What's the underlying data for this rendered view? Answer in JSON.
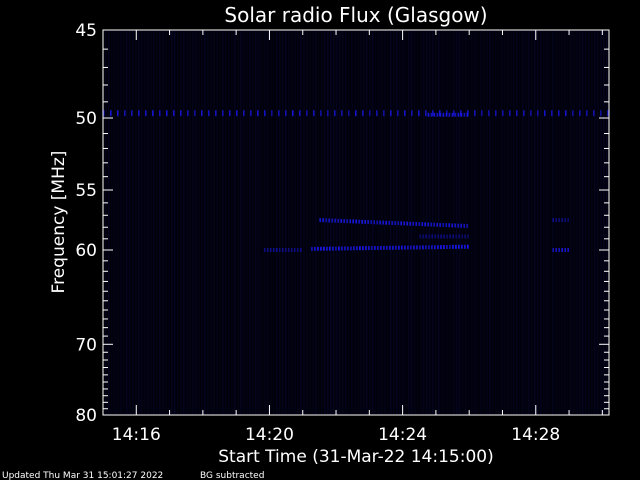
{
  "chart_data": {
    "type": "heatmap",
    "title": "Solar radio Flux (Glasgow)",
    "ylabel": "Frequency [MHz]",
    "xlabel": "Start Time (31-Mar-22 14:15:00)",
    "y_scale": "reciprocal",
    "ylim": [
      45,
      80
    ],
    "y_ticks": [
      "45",
      "50",
      "55",
      "60",
      "70",
      "80"
    ],
    "xlim": [
      "14:15:00",
      "14:30:12"
    ],
    "x_ticks": [
      "14:16",
      "14:20",
      "14:24",
      "14:28"
    ],
    "colors": {
      "background": "#000000",
      "frame": "#ffffff",
      "emission": "#1a1aff"
    },
    "features": [
      {
        "name": "RFI-line",
        "time_start": "14:15:00",
        "time_end": "14:30:12",
        "freq_mhz": 49.7,
        "intensity": 0.8
      },
      {
        "name": "burst-line-upper",
        "time_start": "14:21:30",
        "time_end": "14:26:00",
        "freq_start_mhz": 57.4,
        "freq_end_mhz": 57.9,
        "intensity": 0.9
      },
      {
        "name": "burst-line-lower",
        "time_start": "14:21:15",
        "time_end": "14:26:00",
        "freq_start_mhz": 59.9,
        "freq_end_mhz": 59.7,
        "intensity": 1.0
      },
      {
        "name": "burst-line-middle",
        "time_start": "14:24:30",
        "time_end": "14:26:00",
        "freq_mhz": 58.8,
        "intensity": 0.5
      },
      {
        "name": "early-segment",
        "time_start": "14:19:50",
        "time_end": "14:21:00",
        "freq_mhz": 60.0,
        "intensity": 0.6
      },
      {
        "name": "late-segment-lower",
        "time_start": "14:28:30",
        "time_end": "14:29:00",
        "freq_mhz": 60.0,
        "intensity": 0.9
      },
      {
        "name": "late-segment-upper",
        "time_start": "14:28:30",
        "time_end": "14:29:00",
        "freq_mhz": 57.4,
        "intensity": 0.5
      },
      {
        "name": "rfi-segment-high",
        "time_start": "14:24:45",
        "time_end": "14:26:00",
        "freq_mhz": 49.8,
        "intensity": 0.9
      }
    ]
  },
  "footer": {
    "updated": "Updated Thu Mar 31 15:01:27 2022",
    "bg_note": "BG subtracted"
  }
}
